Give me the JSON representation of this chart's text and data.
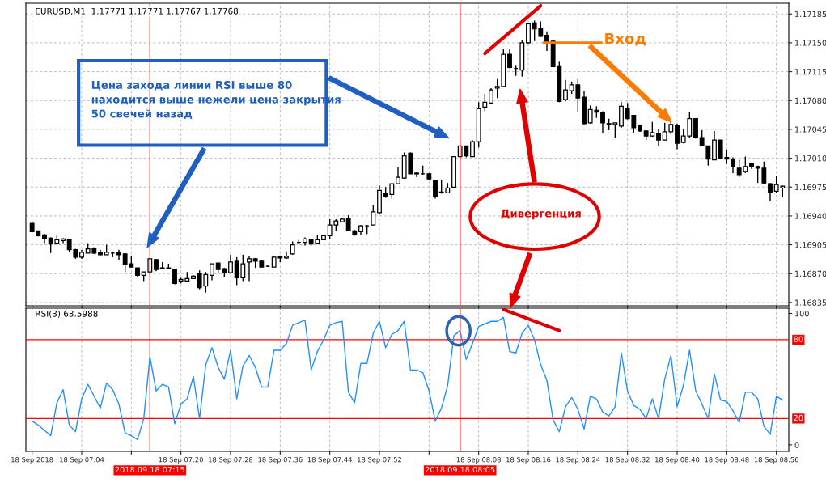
{
  "chart_data": [
    {
      "type": "candlestick",
      "title": "EURUSD,M1  1.17771 1.17771 1.17767 1.17768",
      "x": [
        "2018-09-18T06:56",
        "2018-09-18T06:57",
        "2018-09-18T06:58",
        "2018-09-18T06:59",
        "2018-09-18T07:00",
        "2018-09-18T07:01",
        "2018-09-18T07:02",
        "2018-09-18T07:03",
        "2018-09-18T07:04",
        "2018-09-18T07:05",
        "2018-09-18T07:06",
        "2018-09-18T07:07",
        "2018-09-18T07:08",
        "2018-09-18T07:09",
        "2018-09-18T07:10",
        "2018-09-18T07:11",
        "2018-09-18T07:12",
        "2018-09-18T07:13",
        "2018-09-18T07:14",
        "2018-09-18T07:15",
        "2018-09-18T07:16",
        "2018-09-18T07:17",
        "2018-09-18T07:18",
        "2018-09-18T07:19",
        "2018-09-18T07:20",
        "2018-09-18T07:21",
        "2018-09-18T07:22",
        "2018-09-18T07:23",
        "2018-09-18T07:24",
        "2018-09-18T07:25",
        "2018-09-18T07:26",
        "2018-09-18T07:27",
        "2018-09-18T07:28",
        "2018-09-18T07:29",
        "2018-09-18T07:30",
        "2018-09-18T07:31",
        "2018-09-18T07:32",
        "2018-09-18T07:33",
        "2018-09-18T07:34",
        "2018-09-18T07:35",
        "2018-09-18T07:36",
        "2018-09-18T07:37",
        "2018-09-18T07:38",
        "2018-09-18T07:39",
        "2018-09-18T07:40",
        "2018-09-18T07:41",
        "2018-09-18T07:42",
        "2018-09-18T07:43",
        "2018-09-18T07:44",
        "2018-09-18T07:45",
        "2018-09-18T07:46",
        "2018-09-18T07:47",
        "2018-09-18T07:48",
        "2018-09-18T07:49",
        "2018-09-18T07:50",
        "2018-09-18T07:51",
        "2018-09-18T07:52",
        "2018-09-18T07:53",
        "2018-09-18T07:54",
        "2018-09-18T07:55",
        "2018-09-18T07:56",
        "2018-09-18T07:57",
        "2018-09-18T07:58",
        "2018-09-18T07:59",
        "2018-09-18T08:00",
        "2018-09-18T08:01",
        "2018-09-18T08:02",
        "2018-09-18T08:03",
        "2018-09-18T08:04",
        "2018-09-18T08:05",
        "2018-09-18T08:06",
        "2018-09-18T08:07",
        "2018-09-18T08:08",
        "2018-09-18T08:09",
        "2018-09-18T08:10",
        "2018-09-18T08:11",
        "2018-09-18T08:12",
        "2018-09-18T08:13",
        "2018-09-18T08:14",
        "2018-09-18T08:15",
        "2018-09-18T08:16",
        "2018-09-18T08:17",
        "2018-09-18T08:18",
        "2018-09-18T08:19",
        "2018-09-18T08:20",
        "2018-09-18T08:21",
        "2018-09-18T08:22",
        "2018-09-18T08:23",
        "2018-09-18T08:24",
        "2018-09-18T08:25",
        "2018-09-18T08:26",
        "2018-09-18T08:27",
        "2018-09-18T08:28",
        "2018-09-18T08:29",
        "2018-09-18T08:30",
        "2018-09-18T08:31",
        "2018-09-18T08:32",
        "2018-09-18T08:33",
        "2018-09-18T08:34",
        "2018-09-18T08:35",
        "2018-09-18T08:36",
        "2018-09-18T08:37",
        "2018-09-18T08:38",
        "2018-09-18T08:39",
        "2018-09-18T08:40",
        "2018-09-18T08:41",
        "2018-09-18T08:42",
        "2018-09-18T08:43",
        "2018-09-18T08:44",
        "2018-09-18T08:45",
        "2018-09-18T08:46",
        "2018-09-18T08:47",
        "2018-09-18T08:48",
        "2018-09-18T08:49",
        "2018-09-18T08:50",
        "2018-09-18T08:51",
        "2018-09-18T08:52",
        "2018-09-18T08:53",
        "2018-09-18T08:54",
        "2018-09-18T08:55",
        "2018-09-18T08:56",
        "2018-09-18T08:57"
      ],
      "ohlc": [
        [
          1.16931,
          1.16933,
          1.1692,
          1.16921
        ],
        [
          1.16922,
          1.16922,
          1.16915,
          1.16916
        ],
        [
          1.16917,
          1.16918,
          1.16907,
          1.16913
        ],
        [
          1.16913,
          1.16914,
          1.16895,
          1.16906
        ],
        [
          1.16907,
          1.16916,
          1.16906,
          1.16911
        ],
        [
          1.1691,
          1.16913,
          1.16907,
          1.16912
        ],
        [
          1.16911,
          1.16912,
          1.16896,
          1.16899
        ],
        [
          1.16899,
          1.169,
          1.16888,
          1.1689
        ],
        [
          1.1689,
          1.16899,
          1.16888,
          1.16896
        ],
        [
          1.16895,
          1.16907,
          1.16895,
          1.169
        ],
        [
          1.16901,
          1.16902,
          1.16894,
          1.16895
        ],
        [
          1.16896,
          1.16899,
          1.16892,
          1.16893
        ],
        [
          1.16893,
          1.16905,
          1.16893,
          1.16896
        ],
        [
          1.16895,
          1.16896,
          1.1689,
          1.16895
        ],
        [
          1.16896,
          1.16899,
          1.16887,
          1.16893
        ],
        [
          1.16894,
          1.16895,
          1.16872,
          1.16881
        ],
        [
          1.16882,
          1.16892,
          1.16878,
          1.16878
        ],
        [
          1.16877,
          1.16877,
          1.16866,
          1.16868
        ],
        [
          1.16868,
          1.16872,
          1.16861,
          1.16872
        ],
        [
          1.16872,
          1.16889,
          1.16871,
          1.16888
        ],
        [
          1.16887,
          1.16888,
          1.16873,
          1.16875
        ],
        [
          1.16877,
          1.16884,
          1.16876,
          1.16876
        ],
        [
          1.16877,
          1.16882,
          1.16876,
          1.16876
        ],
        [
          1.16875,
          1.16876,
          1.16857,
          1.16858
        ],
        [
          1.16861,
          1.16865,
          1.16858,
          1.16863
        ],
        [
          1.16861,
          1.16872,
          1.16861,
          1.16864
        ],
        [
          1.16864,
          1.16868,
          1.16864,
          1.16867
        ],
        [
          1.1687,
          1.16874,
          1.16851,
          1.16853
        ],
        [
          1.16855,
          1.16872,
          1.16847,
          1.16869
        ],
        [
          1.16868,
          1.16882,
          1.16862,
          1.16882
        ],
        [
          1.16883,
          1.16883,
          1.16871,
          1.16875
        ],
        [
          1.16876,
          1.16877,
          1.16866,
          1.16871
        ],
        [
          1.16871,
          1.16893,
          1.1687,
          1.16884
        ],
        [
          1.16885,
          1.1689,
          1.16856,
          1.16865
        ],
        [
          1.16865,
          1.16893,
          1.16861,
          1.16882
        ],
        [
          1.16884,
          1.16891,
          1.16861,
          1.16888
        ],
        [
          1.16888,
          1.16889,
          1.16877,
          1.16885
        ],
        [
          1.16885,
          1.16886,
          1.16878,
          1.16878
        ],
        [
          1.16879,
          1.1688,
          1.16878,
          1.16879
        ],
        [
          1.16878,
          1.16891,
          1.16878,
          1.1689
        ],
        [
          1.16891,
          1.16892,
          1.16884,
          1.16889
        ],
        [
          1.16889,
          1.16897,
          1.16888,
          1.16891
        ],
        [
          1.16894,
          1.16909,
          1.16893,
          1.16905
        ],
        [
          1.16908,
          1.16911,
          1.16906,
          1.16908
        ],
        [
          1.16908,
          1.16914,
          1.16904,
          1.16912
        ],
        [
          1.16911,
          1.16912,
          1.16904,
          1.16906
        ],
        [
          1.16907,
          1.16917,
          1.16907,
          1.16911
        ],
        [
          1.16911,
          1.16917,
          1.16911,
          1.16916
        ],
        [
          1.16916,
          1.16936,
          1.16912,
          1.16929
        ],
        [
          1.16929,
          1.16936,
          1.16922,
          1.16934
        ],
        [
          1.16933,
          1.16938,
          1.16933,
          1.16936
        ],
        [
          1.16937,
          1.16941,
          1.16922,
          1.16922
        ],
        [
          1.16922,
          1.16923,
          1.16916,
          1.16918
        ],
        [
          1.16921,
          1.16929,
          1.16917,
          1.16928
        ],
        [
          1.16928,
          1.16929,
          1.16918,
          1.16928
        ],
        [
          1.16929,
          1.16953,
          1.16929,
          1.16945
        ],
        [
          1.16944,
          1.16977,
          1.16943,
          1.16971
        ],
        [
          1.16967,
          1.16975,
          1.16962,
          1.16963
        ],
        [
          1.16966,
          1.16979,
          1.16961,
          1.16979
        ],
        [
          1.16979,
          1.16999,
          1.16979,
          1.16987
        ],
        [
          1.16986,
          1.17017,
          1.16985,
          1.17013
        ],
        [
          1.17016,
          1.17017,
          1.16991,
          1.16991
        ],
        [
          1.16992,
          1.16994,
          1.16987,
          1.16991
        ],
        [
          1.16991,
          1.17001,
          1.1699,
          1.16991
        ],
        [
          1.16991,
          1.16992,
          1.16984,
          1.16985
        ],
        [
          1.16983,
          1.16984,
          1.16961,
          1.16963
        ],
        [
          1.16969,
          1.16984,
          1.16967,
          1.16968
        ],
        [
          1.16968,
          1.1698,
          1.16968,
          1.16974
        ],
        [
          1.16975,
          1.17012,
          1.16975,
          1.17012
        ],
        [
          1.17012,
          1.17026,
          1.17011,
          1.17025
        ],
        [
          1.17025,
          1.17025,
          1.17011,
          1.17013
        ],
        [
          1.17012,
          1.17032,
          1.17012,
          1.1703
        ],
        [
          1.1703,
          1.17078,
          1.17023,
          1.1707
        ],
        [
          1.17072,
          1.17088,
          1.17067,
          1.17078
        ],
        [
          1.17077,
          1.17095,
          1.17076,
          1.17093
        ],
        [
          1.17095,
          1.17106,
          1.17083,
          1.17097
        ],
        [
          1.17097,
          1.17142,
          1.17096,
          1.17136
        ],
        [
          1.17136,
          1.17143,
          1.17119,
          1.1712
        ],
        [
          1.17119,
          1.17123,
          1.1711,
          1.17119
        ],
        [
          1.17117,
          1.17153,
          1.17109,
          1.1715
        ],
        [
          1.1715,
          1.17174,
          1.17148,
          1.17173
        ],
        [
          1.17174,
          1.17177,
          1.17152,
          1.17167
        ],
        [
          1.17167,
          1.17176,
          1.17157,
          1.17158
        ],
        [
          1.17159,
          1.17164,
          1.1714,
          1.17151
        ],
        [
          1.17152,
          1.17153,
          1.1712,
          1.17121
        ],
        [
          1.17122,
          1.17127,
          1.17078,
          1.17079
        ],
        [
          1.17081,
          1.17105,
          1.17079,
          1.17093
        ],
        [
          1.17092,
          1.17103,
          1.17088,
          1.17099
        ],
        [
          1.17099,
          1.17106,
          1.17066,
          1.17083
        ],
        [
          1.17084,
          1.17092,
          1.17051,
          1.17052
        ],
        [
          1.17053,
          1.17074,
          1.17052,
          1.17069
        ],
        [
          1.17068,
          1.17073,
          1.17059,
          1.17066
        ],
        [
          1.17066,
          1.17067,
          1.1704,
          1.17053
        ],
        [
          1.17052,
          1.17058,
          1.17044,
          1.17051
        ],
        [
          1.17051,
          1.17053,
          1.17035,
          1.17053
        ],
        [
          1.17049,
          1.17078,
          1.17047,
          1.17073
        ],
        [
          1.1707,
          1.17077,
          1.17057,
          1.17058
        ],
        [
          1.17062,
          1.17062,
          1.17041,
          1.17047
        ],
        [
          1.1705,
          1.17051,
          1.17042,
          1.17043
        ],
        [
          1.17043,
          1.17044,
          1.17032,
          1.17037
        ],
        [
          1.17037,
          1.17054,
          1.17036,
          1.17041
        ],
        [
          1.1704,
          1.17045,
          1.17025,
          1.17032
        ],
        [
          1.17032,
          1.17053,
          1.17032,
          1.17042
        ],
        [
          1.17042,
          1.17056,
          1.17039,
          1.17051
        ],
        [
          1.1705,
          1.17052,
          1.17021,
          1.17028
        ],
        [
          1.17029,
          1.17045,
          1.17028,
          1.17037
        ],
        [
          1.17037,
          1.17066,
          1.17035,
          1.17058
        ],
        [
          1.17058,
          1.17058,
          1.17034,
          1.17035
        ],
        [
          1.17035,
          1.17044,
          1.17026,
          1.17026
        ],
        [
          1.17025,
          1.17025,
          1.17001,
          1.17009
        ],
        [
          1.17008,
          1.17043,
          1.17008,
          1.17032
        ],
        [
          1.17032,
          1.17032,
          1.17009,
          1.1701
        ],
        [
          1.17011,
          1.1702,
          1.17003,
          1.17009
        ],
        [
          1.17009,
          1.17011,
          1.16992,
          1.17
        ],
        [
          1.16998,
          1.17008,
          1.16987,
          1.1699
        ],
        [
          1.16994,
          1.17012,
          1.16992,
          1.17
        ],
        [
          1.17003,
          1.17004,
          1.16997,
          1.17
        ],
        [
          1.17,
          1.17001,
          1.1698,
          1.16998
        ],
        [
          1.16998,
          1.17006,
          1.16979,
          1.1698
        ],
        [
          1.16979,
          1.1698,
          1.16958,
          1.16969
        ],
        [
          1.1697,
          1.16989,
          1.16968,
          1.16978
        ],
        [
          1.16974,
          1.16977,
          1.16963,
          1.16976
        ]
      ],
      "xlim": [
        "2018-09-18T06:55",
        "2018-09-18T08:58"
      ],
      "xticks": [
        "2018-09-18T06:56",
        "2018-09-18T07:04",
        "2018-09-18T07:12",
        "2018-09-18T07:20",
        "2018-09-18T07:28",
        "2018-09-18T07:36",
        "2018-09-18T07:44",
        "2018-09-18T07:52",
        "2018-09-18T08:00",
        "2018-09-18T08:08",
        "2018-09-18T08:16",
        "2018-09-18T08:24",
        "2018-09-18T08:32",
        "2018-09-18T08:40",
        "2018-09-18T08:48",
        "2018-09-18T08:56"
      ],
      "ylim": [
        1.16831,
        1.17198
      ],
      "yticks": [
        1.16835,
        {
          "value": 1.1687,
          "label": "1.16870"
        },
        1.16905,
        {
          "value": 1.1694,
          "label": "1.16940"
        },
        1.16975,
        {
          "value": 1.1701,
          "label": "1.17010"
        },
        1.17045,
        {
          "value": 1.1708,
          "label": "1.17080"
        },
        1.17115,
        {
          "value": 1.1715,
          "label": "1.17150"
        },
        1.17185
      ],
      "tick_labels": "y",
      "grid": true,
      "ref_lines": [
        {
          "axis": "x",
          "value": "2018-09-18T07:15",
          "color": "#ff0000"
        },
        {
          "axis": "x",
          "value": "2018-09-18T08:05",
          "color": "#ff0000"
        }
      ],
      "annotations": [
        "Цена захода линии RSI выше 80\nнаходится выше нежели цена закрытия\n50 свечей назад",
        "Вход",
        "Дивергенция"
      ],
      "series": [
        {
          "type": "line",
          "color": "#e00000",
          "x": [
            "2018-09-18T08:09",
            "2018-09-18T08:18"
          ],
          "values": [
            1.17137,
            1.17195
          ]
        }
      ]
    },
    {
      "type": "line",
      "title": "RSI(3) 63.5988",
      "x": [
        "2018-09-18T06:56",
        "2018-09-18T06:57",
        "2018-09-18T06:58",
        "2018-09-18T06:59",
        "2018-09-18T07:00",
        "2018-09-18T07:01",
        "2018-09-18T07:02",
        "2018-09-18T07:03",
        "2018-09-18T07:04",
        "2018-09-18T07:05",
        "2018-09-18T07:06",
        "2018-09-18T07:07",
        "2018-09-18T07:08",
        "2018-09-18T07:09",
        "2018-09-18T07:10",
        "2018-09-18T07:11",
        "2018-09-18T07:12",
        "2018-09-18T07:13",
        "2018-09-18T07:14",
        "2018-09-18T07:15",
        "2018-09-18T07:16",
        "2018-09-18T07:17",
        "2018-09-18T07:18",
        "2018-09-18T07:19",
        "2018-09-18T07:20",
        "2018-09-18T07:21",
        "2018-09-18T07:22",
        "2018-09-18T07:23",
        "2018-09-18T07:24",
        "2018-09-18T07:25",
        "2018-09-18T07:26",
        "2018-09-18T07:27",
        "2018-09-18T07:28",
        "2018-09-18T07:29",
        "2018-09-18T07:30",
        "2018-09-18T07:31",
        "2018-09-18T07:32",
        "2018-09-18T07:33",
        "2018-09-18T07:34",
        "2018-09-18T07:35",
        "2018-09-18T07:36",
        "2018-09-18T07:37",
        "2018-09-18T07:38",
        "2018-09-18T07:39",
        "2018-09-18T07:40",
        "2018-09-18T07:41",
        "2018-09-18T07:42",
        "2018-09-18T07:43",
        "2018-09-18T07:44",
        "2018-09-18T07:45",
        "2018-09-18T07:46",
        "2018-09-18T07:47",
        "2018-09-18T07:48",
        "2018-09-18T07:49",
        "2018-09-18T07:50",
        "2018-09-18T07:51",
        "2018-09-18T07:52",
        "2018-09-18T07:53",
        "2018-09-18T07:54",
        "2018-09-18T07:55",
        "2018-09-18T07:56",
        "2018-09-18T07:57",
        "2018-09-18T07:58",
        "2018-09-18T07:59",
        "2018-09-18T08:00",
        "2018-09-18T08:01",
        "2018-09-18T08:02",
        "2018-09-18T08:03",
        "2018-09-18T08:04",
        "2018-09-18T08:05",
        "2018-09-18T08:06",
        "2018-09-18T08:07",
        "2018-09-18T08:08",
        "2018-09-18T08:09",
        "2018-09-18T08:10",
        "2018-09-18T08:11",
        "2018-09-18T08:12",
        "2018-09-18T08:13",
        "2018-09-18T08:14",
        "2018-09-18T08:15",
        "2018-09-18T08:16",
        "2018-09-18T08:17",
        "2018-09-18T08:18",
        "2018-09-18T08:19",
        "2018-09-18T08:20",
        "2018-09-18T08:21",
        "2018-09-18T08:22",
        "2018-09-18T08:23",
        "2018-09-18T08:24",
        "2018-09-18T08:25",
        "2018-09-18T08:26",
        "2018-09-18T08:27",
        "2018-09-18T08:28",
        "2018-09-18T08:29",
        "2018-09-18T08:30",
        "2018-09-18T08:31",
        "2018-09-18T08:32",
        "2018-09-18T08:33",
        "2018-09-18T08:34",
        "2018-09-18T08:35",
        "2018-09-18T08:36",
        "2018-09-18T08:37",
        "2018-09-18T08:38",
        "2018-09-18T08:39",
        "2018-09-18T08:40",
        "2018-09-18T08:41",
        "2018-09-18T08:42",
        "2018-09-18T08:43",
        "2018-09-18T08:44",
        "2018-09-18T08:45",
        "2018-09-18T08:46",
        "2018-09-18T08:47",
        "2018-09-18T08:48",
        "2018-09-18T08:49",
        "2018-09-18T08:50",
        "2018-09-18T08:51",
        "2018-09-18T08:52",
        "2018-09-18T08:53",
        "2018-09-18T08:54",
        "2018-09-18T08:55",
        "2018-09-18T08:56",
        "2018-09-18T08:57"
      ],
      "series": [
        {
          "type": "line",
          "color": "#e00000",
          "x": [
            "2018-09-18T08:12",
            "2018-09-18T08:21"
          ],
          "values": [
            103,
            87
          ]
        },
        {
          "color": "#1e90ff",
          "values": [
            18,
            15,
            11,
            7,
            32,
            42,
            15,
            10,
            35,
            46,
            37,
            28,
            47,
            42,
            31,
            9,
            7,
            4,
            20,
            67,
            41,
            46,
            44,
            16,
            31,
            35,
            52,
            20,
            61,
            74,
            59,
            50,
            72,
            35,
            60,
            68,
            59,
            44,
            44,
            72,
            72,
            77,
            91,
            93,
            95,
            57,
            71,
            80,
            91,
            93,
            94,
            40,
            32,
            62,
            62,
            85,
            94,
            74,
            84,
            87,
            94,
            57,
            57,
            55,
            41,
            18,
            28,
            45,
            83,
            87,
            65,
            77,
            90,
            92,
            94,
            94,
            97,
            71,
            70,
            85,
            91,
            80,
            61,
            49,
            19,
            10,
            29,
            36,
            27,
            12,
            37,
            35,
            25,
            22,
            29,
            70,
            41,
            30,
            27,
            20,
            35,
            20,
            50,
            68,
            29,
            45,
            72,
            41,
            31,
            20,
            54,
            34,
            33,
            26,
            17,
            40,
            40,
            35,
            14,
            8,
            37,
            34
          ]
        }
      ],
      "xlim": [
        "2018-09-18T06:55",
        "2018-09-18T08:58"
      ],
      "xticks": [
        {
          "value": "2018-09-18T06:56",
          "label": "18 Sep 2018"
        },
        {
          "value": "2018-09-18T07:04",
          "label": "18 Sep 07:04"
        },
        {
          "value": "2018-09-18T07:12",
          "label": null
        },
        {
          "value": "2018-09-18T07:20",
          "label": "18 Sep 07:20"
        },
        {
          "value": "2018-09-18T07:28",
          "label": "18 Sep 07:28"
        },
        {
          "value": "2018-09-18T07:36",
          "label": "18 Sep 07:36"
        },
        {
          "value": "2018-09-18T07:44",
          "label": "18 Sep 07:44"
        },
        {
          "value": "2018-09-18T07:52",
          "label": "18 Sep 07:52"
        },
        {
          "value": "2018-09-18T08:00",
          "label": null
        },
        {
          "value": "2018-09-18T08:08",
          "label": "18 Sep 08:08"
        },
        {
          "value": "2018-09-18T08:16",
          "label": "18 Sep 08:16"
        },
        {
          "value": "2018-09-18T08:24",
          "label": "18 Sep 08:24"
        },
        {
          "value": "2018-09-18T08:32",
          "label": "18 Sep 08:32"
        },
        {
          "value": "2018-09-18T08:40",
          "label": "18 Sep 08:40"
        },
        {
          "value": "2018-09-18T08:48",
          "label": "18 Sep 08:48"
        },
        {
          "value": "2018-09-18T08:56",
          "label": "18 Sep 08:56"
        }
      ],
      "ylim": [
        -5,
        104
      ],
      "yticks": [
        0,
        100
      ],
      "grid": "x",
      "ref_lines": [
        {
          "axis": "y",
          "value": 80,
          "label": "80",
          "color": "#ff0000"
        },
        {
          "axis": "y",
          "value": 20,
          "label": "20",
          "color": "#ff0000"
        },
        {
          "axis": "x",
          "value": "2018-09-18T07:15",
          "label": "2018.09.18 07:15",
          "color": "#ff0000"
        },
        {
          "axis": "x",
          "value": "2018-09-18T08:05",
          "label": "2018.09.18 08:05",
          "color": "#ff0000"
        }
      ]
    }
  ]
}
